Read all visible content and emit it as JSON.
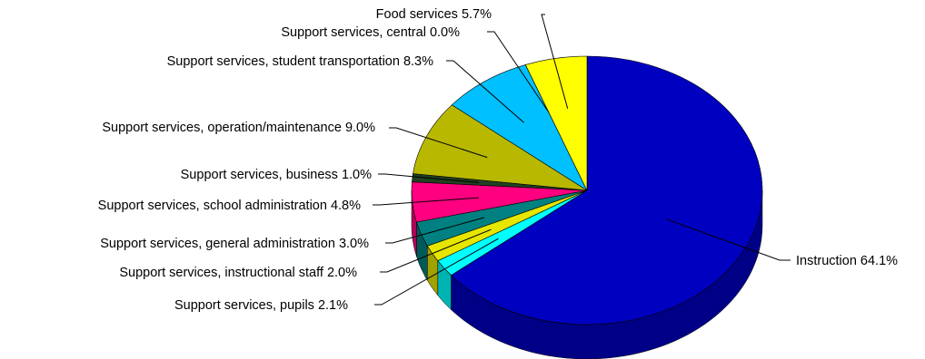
{
  "chart_data": {
    "type": "pie",
    "title": "",
    "legend": "none",
    "slices": [
      {
        "label": "Instruction 64.1%",
        "value": 64.1,
        "color": "#0000c0"
      },
      {
        "label": "Support services, pupils 2.1%",
        "value": 2.1,
        "color": "#00ffff"
      },
      {
        "label": "Support services, instructional staff 2.0%",
        "value": 2.0,
        "color": "#e6e600"
      },
      {
        "label": "Support services, general administration 3.0%",
        "value": 3.0,
        "color": "#008080"
      },
      {
        "label": "Support services, school administration 4.8%",
        "value": 4.8,
        "color": "#ff0080"
      },
      {
        "label": "Support services, business 1.0%",
        "value": 1.0,
        "color": "#204020"
      },
      {
        "label": "Support services, operation/maintenance 9.0%",
        "value": 9.0,
        "color": "#b8b800"
      },
      {
        "label": "Support services, student transportation 8.3%",
        "value": 8.3,
        "color": "#00c0ff"
      },
      {
        "label": "Support services, central 0.0%",
        "value": 0.0,
        "color": "#c0c0c0"
      },
      {
        "label": "Food services 5.7%",
        "value": 5.7,
        "color": "#ffff00"
      }
    ]
  }
}
